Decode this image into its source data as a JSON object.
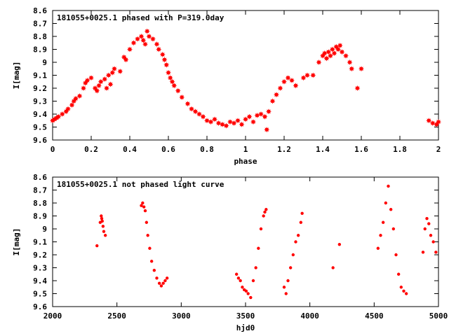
{
  "chart_data": [
    {
      "type": "scatter",
      "title": "181055+0025.1 phased with P=319.0day",
      "xlabel": "phase",
      "ylabel": "I[mag]",
      "xlim": [
        0,
        2
      ],
      "ylim": [
        9.6,
        8.6
      ],
      "y_inverted": true,
      "xticks": [
        0,
        0.2,
        0.4,
        0.6,
        0.8,
        1,
        1.2,
        1.4,
        1.6,
        1.8,
        2
      ],
      "xtick_labels": [
        "0",
        "0.2",
        "0.4",
        "0.6",
        "0.8",
        "1",
        "1.2",
        "1.4",
        "1.6",
        "1.8",
        "2"
      ],
      "yticks": [
        8.6,
        8.7,
        8.8,
        8.9,
        9,
        9.1,
        9.2,
        9.3,
        9.4,
        9.5,
        9.6
      ],
      "ytick_labels": [
        "8.6",
        "8.7",
        "8.8",
        "8.9",
        "9",
        "9.1",
        "9.2",
        "9.3",
        "9.4",
        "9.5",
        "9.6"
      ],
      "marker": "star",
      "color": "#ff0000",
      "series": [
        {
          "x": [
            0.0,
            0.01,
            0.02,
            0.03,
            0.05,
            0.07,
            0.08,
            0.1,
            0.11,
            0.12,
            0.14,
            0.16,
            0.17,
            0.18,
            0.2,
            0.22,
            0.23,
            0.24,
            0.25,
            0.27,
            0.28,
            0.29,
            0.3,
            0.31,
            0.32,
            0.35,
            0.37,
            0.38,
            0.4,
            0.42,
            0.44,
            0.46,
            0.47,
            0.48,
            0.49,
            0.5,
            0.52,
            0.54,
            0.55,
            0.57,
            0.58,
            0.59,
            0.6,
            0.61,
            0.62,
            0.63,
            0.65,
            0.67,
            0.7,
            0.72,
            0.74,
            0.76,
            0.78,
            0.8,
            0.82,
            0.84,
            0.86,
            0.88,
            0.9,
            0.92,
            0.94,
            0.96,
            0.98,
            1.0,
            1.02,
            1.04,
            1.06,
            1.08,
            1.1,
            1.11,
            1.12,
            1.14,
            1.16,
            1.18,
            1.2,
            1.22,
            1.24,
            1.26,
            1.3,
            1.32,
            1.35,
            1.38,
            1.4,
            1.41,
            1.42,
            1.43,
            1.44,
            1.45,
            1.46,
            1.47,
            1.48,
            1.49,
            1.5,
            1.52,
            1.54,
            1.55,
            1.58,
            1.6,
            1.95,
            1.97,
            1.99,
            2.0
          ],
          "y": [
            9.45,
            9.44,
            9.43,
            9.42,
            9.4,
            9.38,
            9.36,
            9.33,
            9.3,
            9.28,
            9.26,
            9.2,
            9.16,
            9.14,
            9.12,
            9.2,
            9.22,
            9.18,
            9.15,
            9.13,
            9.2,
            9.1,
            9.17,
            9.08,
            9.05,
            9.07,
            8.96,
            8.98,
            8.9,
            8.85,
            8.82,
            8.8,
            8.83,
            8.86,
            8.76,
            8.8,
            8.82,
            8.86,
            8.9,
            8.94,
            8.98,
            9.02,
            9.08,
            9.12,
            9.15,
            9.18,
            9.22,
            9.27,
            9.32,
            9.36,
            9.38,
            9.4,
            9.42,
            9.45,
            9.46,
            9.44,
            9.47,
            9.48,
            9.49,
            9.46,
            9.47,
            9.45,
            9.48,
            9.44,
            9.42,
            9.46,
            9.41,
            9.4,
            9.42,
            9.52,
            9.38,
            9.3,
            9.25,
            9.2,
            9.15,
            9.12,
            9.14,
            9.18,
            9.12,
            9.1,
            9.1,
            9.0,
            8.95,
            8.93,
            8.97,
            8.92,
            8.95,
            8.9,
            8.93,
            8.88,
            8.9,
            8.87,
            8.92,
            8.95,
            9.0,
            9.05,
            9.2,
            9.05,
            9.45,
            9.47,
            9.48,
            9.46
          ]
        }
      ]
    },
    {
      "type": "scatter",
      "title": "181055+0025.1 not phased light curve",
      "xlabel": "hjd0",
      "ylabel": "I[mag]",
      "xlim": [
        2000,
        5000
      ],
      "ylim": [
        9.6,
        8.6
      ],
      "y_inverted": true,
      "xticks": [
        2000,
        2500,
        3000,
        3500,
        4000,
        4500,
        5000
      ],
      "xtick_labels": [
        "2000",
        "2500",
        "3000",
        "3500",
        "4000",
        "4500",
        "5000"
      ],
      "yticks": [
        8.6,
        8.7,
        8.8,
        8.9,
        9,
        9.1,
        9.2,
        9.3,
        9.4,
        9.5,
        9.6
      ],
      "ytick_labels": [
        "8.6",
        "8.7",
        "8.8",
        "8.9",
        "9",
        "9.1",
        "9.2",
        "9.3",
        "9.4",
        "9.5",
        "9.6"
      ],
      "marker": "dot",
      "color": "#ff0000",
      "series": [
        {
          "x": [
            2345,
            2370,
            2378,
            2382,
            2386,
            2392,
            2398,
            2410,
            2690,
            2700,
            2710,
            2720,
            2730,
            2740,
            2755,
            2770,
            2790,
            2810,
            2830,
            2845,
            2860,
            2875,
            2890,
            3430,
            3445,
            3460,
            3475,
            3490,
            3505,
            3520,
            3540,
            3560,
            3580,
            3600,
            3620,
            3640,
            3650,
            3660,
            3800,
            3815,
            3830,
            3850,
            3870,
            3890,
            3910,
            3930,
            3940,
            4180,
            4230,
            4530,
            4550,
            4570,
            4590,
            4610,
            4630,
            4650,
            4670,
            4690,
            4710,
            4730,
            4750,
            4880,
            4895,
            4910,
            4925,
            4940,
            4960,
            4980
          ],
          "y": [
            9.13,
            8.95,
            8.9,
            8.92,
            8.94,
            8.98,
            9.02,
            9.05,
            8.82,
            8.8,
            8.83,
            8.86,
            8.95,
            9.05,
            9.15,
            9.25,
            9.32,
            9.38,
            9.42,
            9.44,
            9.42,
            9.4,
            9.38,
            9.35,
            9.38,
            9.4,
            9.45,
            9.47,
            9.48,
            9.5,
            9.53,
            9.4,
            9.3,
            9.15,
            9.0,
            8.9,
            8.87,
            8.85,
            9.45,
            9.5,
            9.4,
            9.3,
            9.2,
            9.1,
            9.05,
            8.95,
            8.88,
            9.3,
            9.12,
            9.15,
            9.05,
            8.95,
            8.8,
            8.67,
            8.85,
            9.0,
            9.2,
            9.35,
            9.45,
            9.48,
            9.5,
            9.18,
            9.0,
            8.92,
            8.96,
            9.05,
            9.1,
            9.18
          ]
        }
      ]
    }
  ]
}
